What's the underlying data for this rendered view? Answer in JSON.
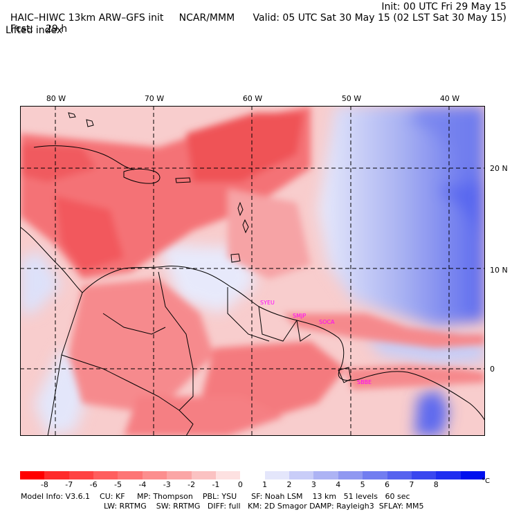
{
  "header": {
    "model": "HAIC–HIWC 13km ARW–GFS init",
    "org": "NCAR/MMM",
    "fcst_label": "Fcst:",
    "fcst_value": "29 h",
    "field": "Lifted index",
    "init": "Init: 00 UTC Fri 29 May 15",
    "valid": "Valid: 05 UTC Sat 30 May 15 (02 LST Sat 30 May 15)"
  },
  "map": {
    "lon_labels": [
      "80 W",
      "70 W",
      "60 W",
      "50 W",
      "40 W"
    ],
    "lat_labels": [
      "20 N",
      "10 N",
      "0"
    ],
    "stations": [
      "SYEU",
      "SMJP",
      "SOCA",
      "SBBE"
    ],
    "colors": {
      "warm_strong": "#f0444c",
      "warm": "#f47a7e",
      "warm_light": "#f9b8ba",
      "neutral": "#fbeeee",
      "cool_light": "#d6dcf6",
      "cool": "#9aa6f0",
      "cool_strong": "#3e4ff0",
      "station": "#ff00ff"
    }
  },
  "colorbar": {
    "ticks": [
      "-8",
      "-7",
      "-6",
      "-5",
      "-4",
      "-3",
      "-2",
      "-1",
      "0",
      "1",
      "2",
      "3",
      "4",
      "5",
      "6",
      "7",
      "8"
    ],
    "unit": "°C",
    "colors": [
      "#ff0000",
      "#ff2b2b",
      "#ff4343",
      "#ff5e5e",
      "#fd7575",
      "#fc8e8e",
      "#fba6a6",
      "#fbc2c2",
      "#fde1e1",
      "#ffffff",
      "#e4e6fb",
      "#c9cdf8",
      "#adb3f4",
      "#9098f1",
      "#727df0",
      "#5662ef",
      "#3a47ef",
      "#1f2ef0",
      "#0010ee"
    ]
  },
  "footer": {
    "line1": "Model Info: V3.6.1    CU: KF     MP: Thompson    PBL: YSU      SF: Noah LSM    13 km   51 levels   60 sec",
    "line2": "LW: RRTMG    SW: RRTMG   DIFF: full   KM: 2D Smagor DAMP: Rayleigh3  SFLAY: MM5"
  }
}
